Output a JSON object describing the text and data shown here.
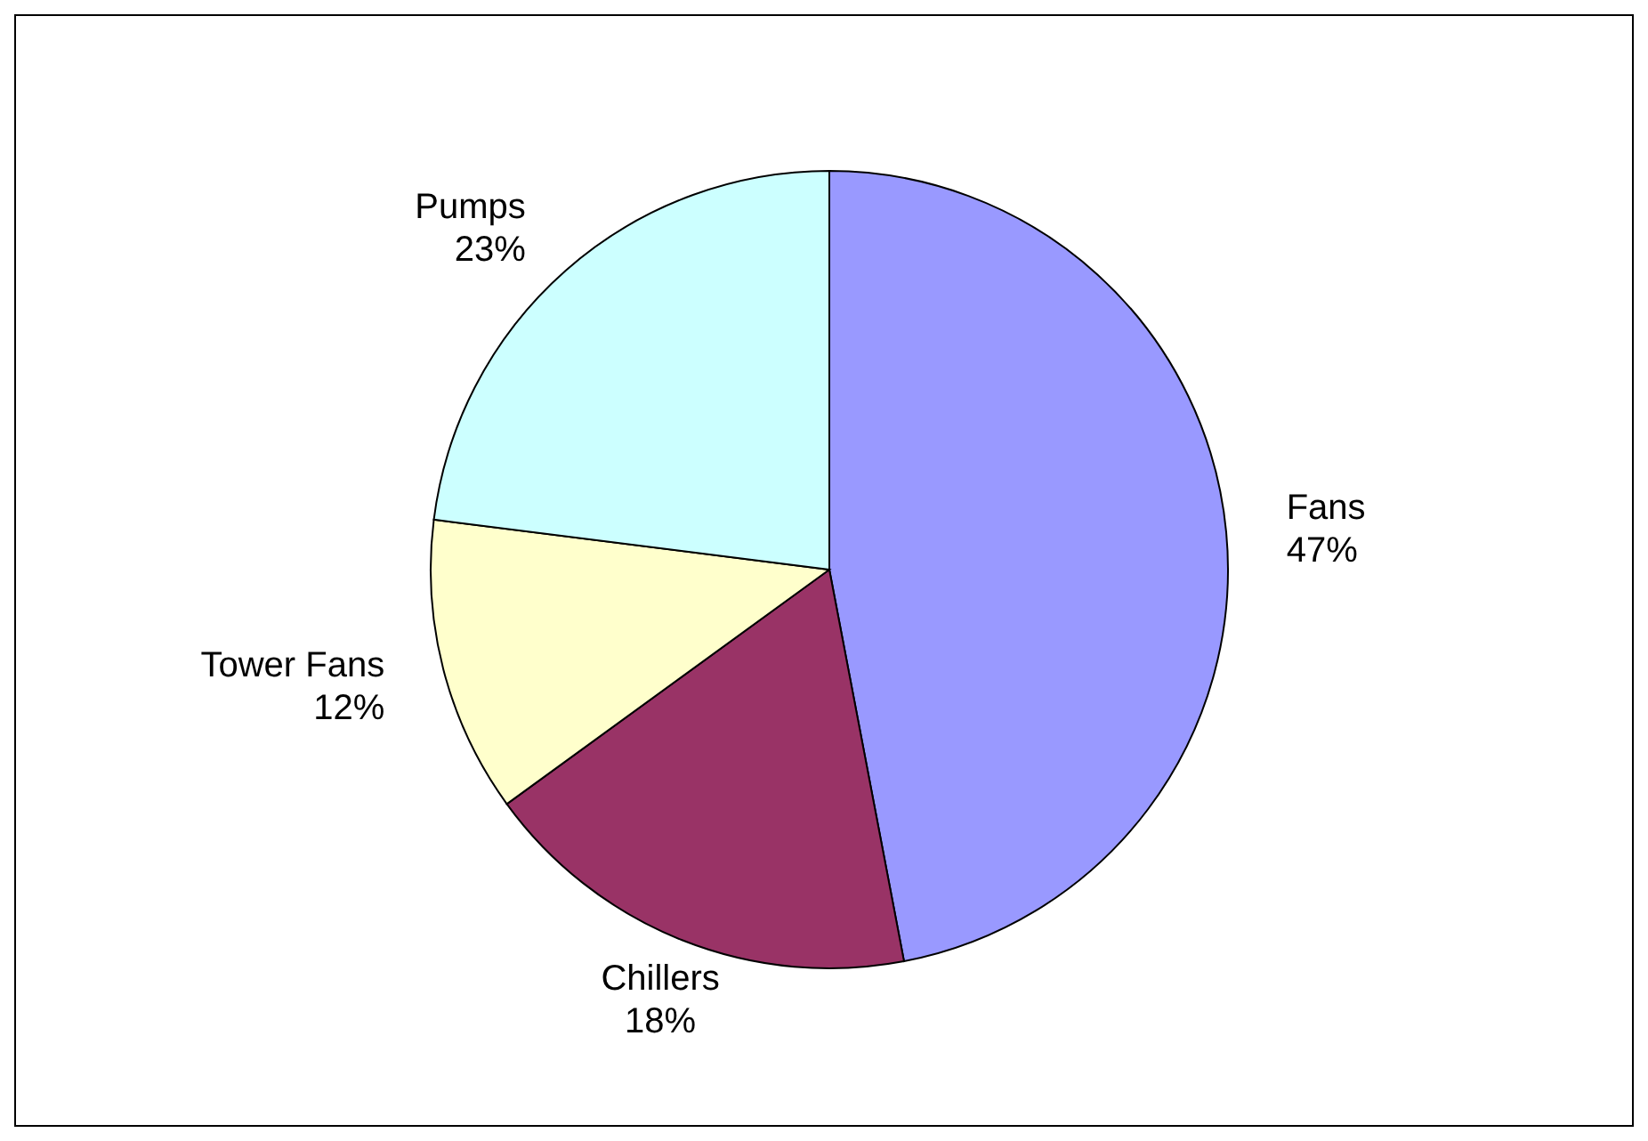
{
  "chart_data": {
    "type": "pie",
    "categories": [
      "Fans",
      "Chillers",
      "Tower Fans",
      "Pumps"
    ],
    "values": [
      47,
      18,
      12,
      23
    ],
    "value_labels": [
      "47%",
      "18%",
      "12%",
      "23%"
    ],
    "colors": [
      "#9999ff",
      "#993366",
      "#ffffcc",
      "#ccffff"
    ],
    "legend": false
  }
}
